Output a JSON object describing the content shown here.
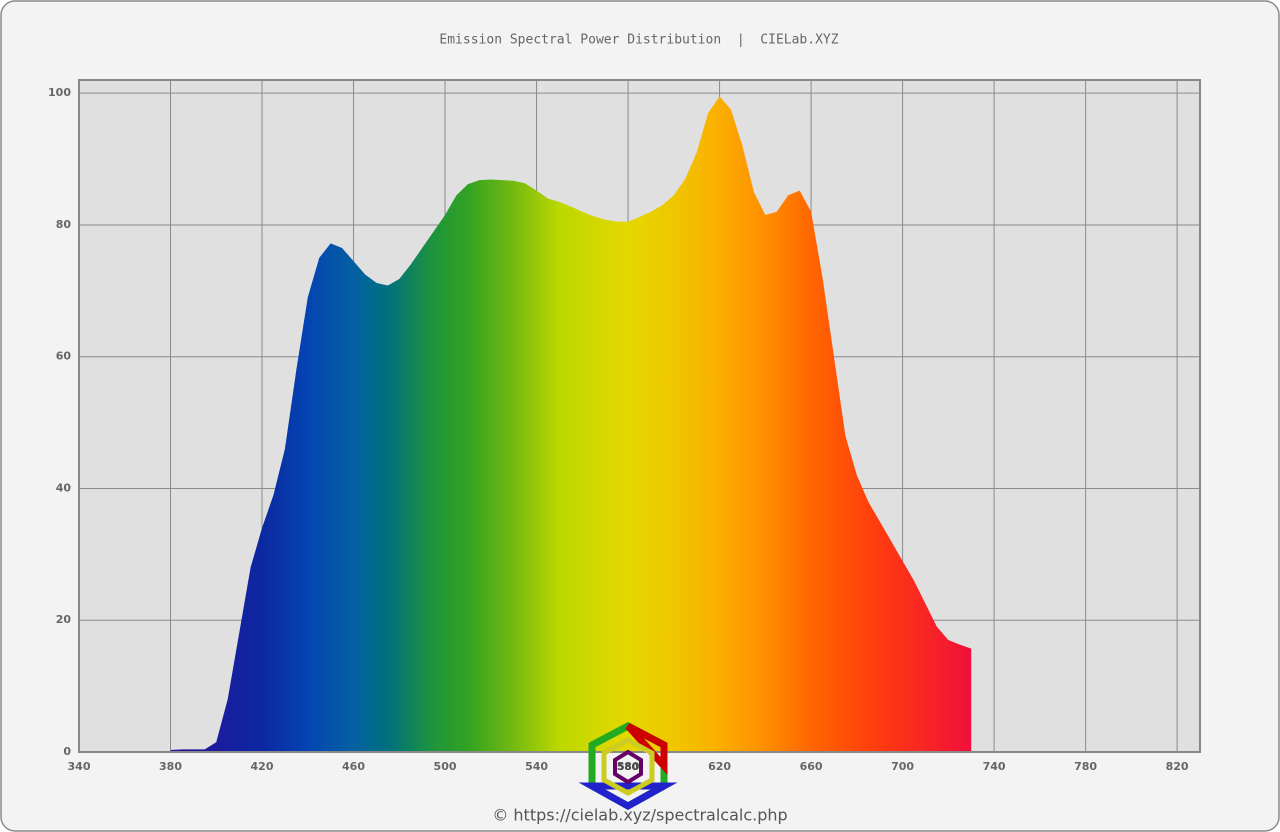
{
  "chart_data": {
    "type": "area",
    "title": "Emission Spectral Power Distribution  |  CIELab.XYZ",
    "footer": "© https://cielab.xyz/spectralcalc.php",
    "logo_text": "580",
    "x": [
      380,
      385,
      390,
      395,
      400,
      405,
      410,
      415,
      420,
      425,
      430,
      435,
      440,
      445,
      450,
      455,
      460,
      465,
      470,
      475,
      480,
      485,
      490,
      495,
      500,
      505,
      510,
      515,
      520,
      525,
      530,
      535,
      540,
      545,
      550,
      555,
      560,
      565,
      570,
      575,
      580,
      585,
      590,
      595,
      600,
      605,
      610,
      615,
      620,
      625,
      630,
      635,
      640,
      645,
      650,
      655,
      660,
      665,
      670,
      675,
      680,
      685,
      690,
      695,
      700,
      705,
      710,
      715,
      720,
      725,
      730
    ],
    "values": [
      0.3,
      0.4,
      0.4,
      0.4,
      1.5,
      8,
      18,
      28,
      34,
      39,
      46,
      58,
      69,
      75,
      77.2,
      76.5,
      74.5,
      72.5,
      71.2,
      70.8,
      71.8,
      74,
      76.5,
      79,
      81.5,
      84.5,
      86.2,
      86.8,
      86.9,
      86.8,
      86.7,
      86.3,
      85.2,
      84,
      83.5,
      82.8,
      82,
      81.3,
      80.8,
      80.5,
      80.5,
      81.2,
      82,
      83,
      84.5,
      87,
      91,
      97,
      99.5,
      97.5,
      92,
      85,
      81.5,
      82,
      84.5,
      85.2,
      82,
      72,
      60,
      48,
      42,
      38,
      35,
      32,
      29,
      26,
      22.5,
      19,
      17,
      16.3,
      15.7
    ],
    "xlim": [
      340,
      830
    ],
    "xticks": [
      340,
      380,
      420,
      460,
      500,
      540,
      580,
      620,
      660,
      700,
      740,
      780,
      820
    ],
    "ylim": [
      0,
      102
    ],
    "yticks": [
      0,
      20,
      40,
      60,
      80,
      100
    ],
    "grid": true
  }
}
